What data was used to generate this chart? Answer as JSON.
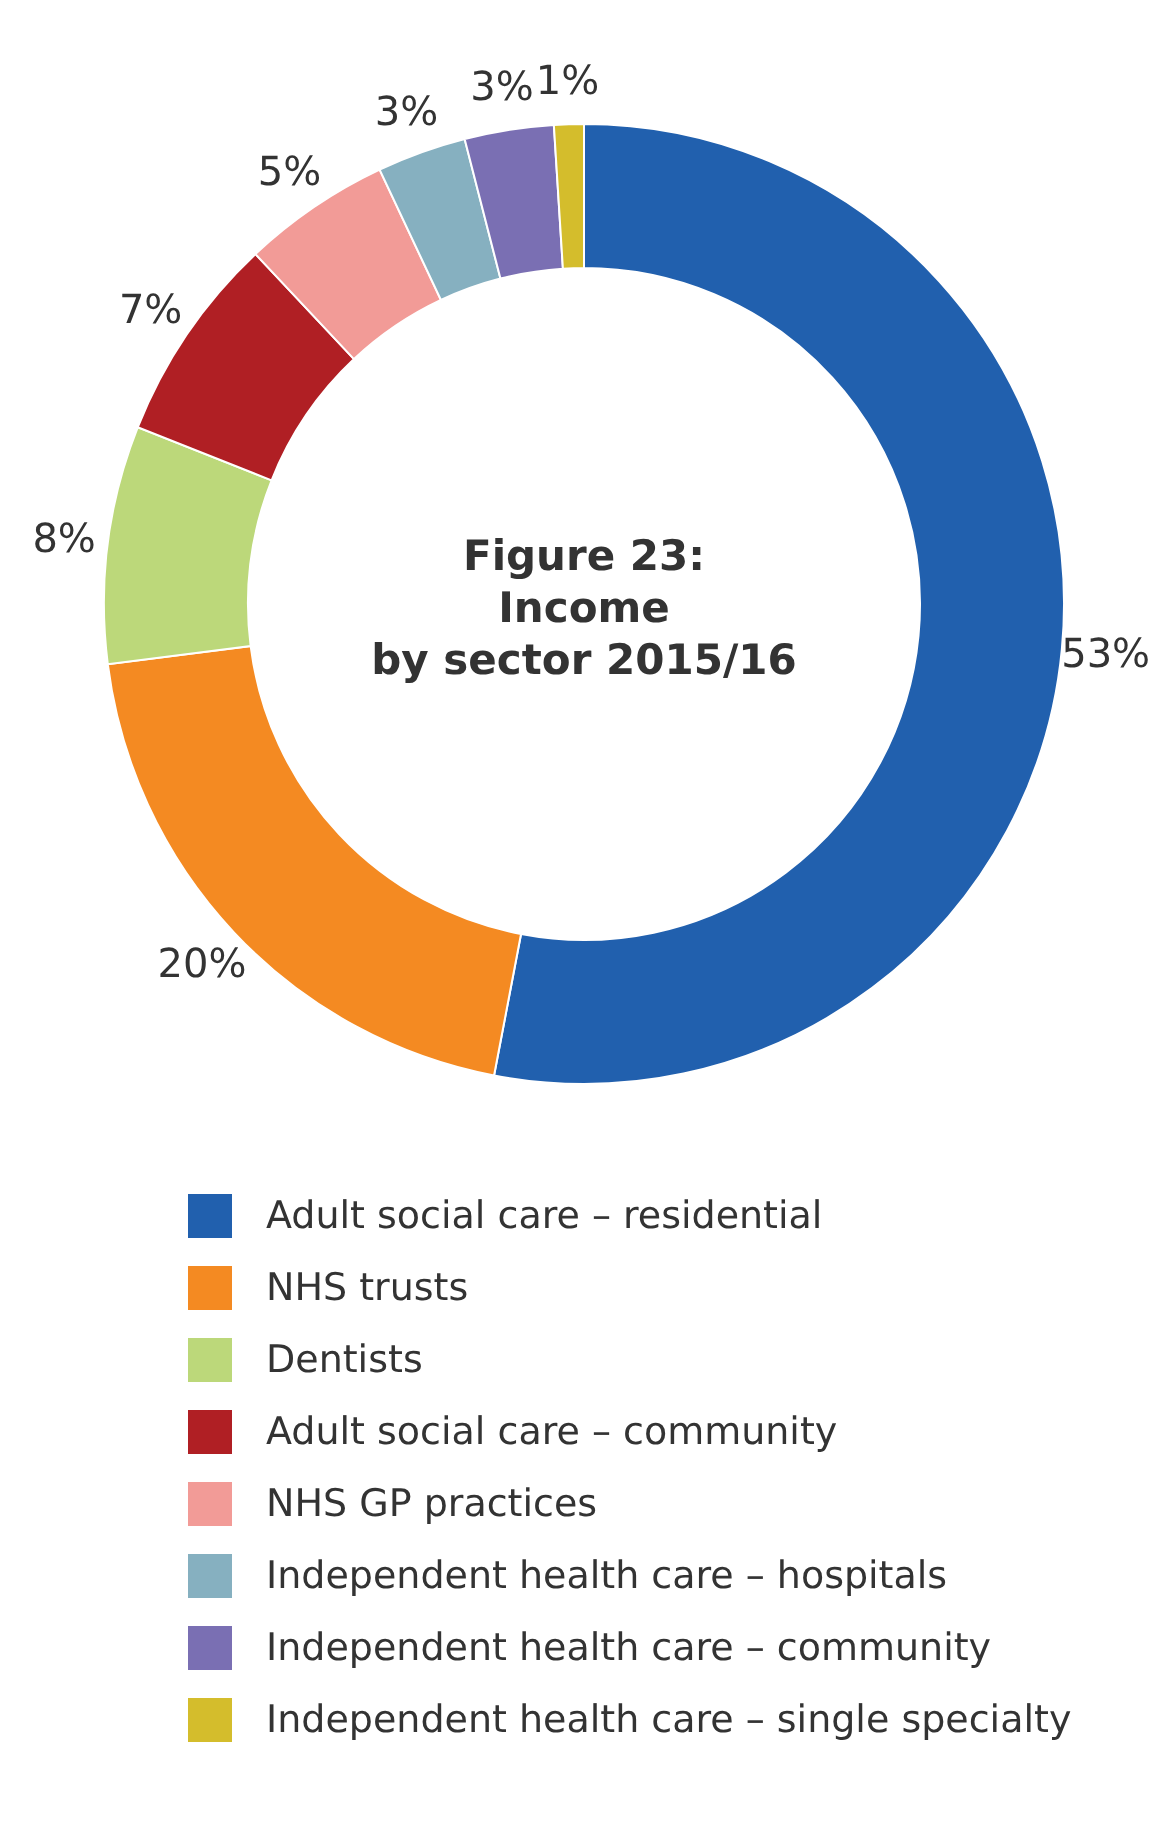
{
  "chart_data": {
    "type": "donut",
    "title": "Figure 23:\nIncome\nby sector 2015/16",
    "categories": [
      "Adult social care – residential",
      "NHS trusts",
      "Dentists",
      "Adult social care – community",
      "NHS GP practices",
      "Independent health care – hospitals",
      "Independent health care – community",
      "Independent health care – single specialty"
    ],
    "values": [
      53,
      20,
      8,
      7,
      5,
      3,
      3,
      1
    ],
    "colors": [
      "#2160ae",
      "#f48a22",
      "#bcd87a",
      "#b01f24",
      "#f29b97",
      "#86b0c0",
      "#7a6fb3",
      "#d4bd2c"
    ],
    "value_labels": [
      "53%",
      "20%",
      "8%",
      "7%",
      "5%",
      "3%",
      "3%",
      "1%"
    ],
    "legend": "bottom"
  }
}
